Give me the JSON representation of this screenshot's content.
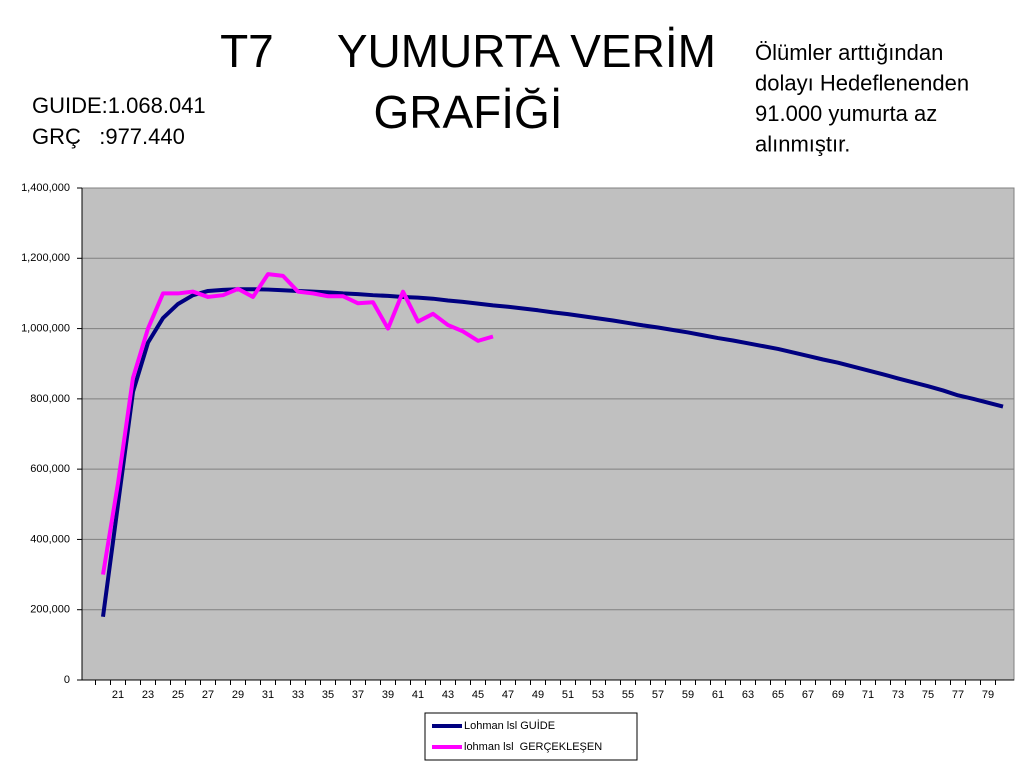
{
  "chart_data": {
    "type": "line",
    "title": [
      "T7     YUMURTA VERİM",
      "GRAFİĞİ"
    ],
    "summary": [
      "GUIDE:1.068.041",
      "GRÇ   :977.440"
    ],
    "annotation": [
      "Ölümler arttığından",
      "dolayı Hedeflenenden",
      "91.000 yumurta az",
      "alınmıştır."
    ],
    "categories": [
      null,
      "21",
      null,
      "23",
      null,
      "25",
      null,
      "27",
      null,
      "29",
      null,
      "31",
      null,
      "33",
      null,
      "35",
      null,
      "37",
      null,
      "39",
      null,
      "41",
      null,
      "43",
      null,
      "45",
      null,
      "47",
      null,
      "49",
      null,
      "51",
      null,
      "53",
      null,
      "55",
      null,
      "57",
      null,
      "59",
      null,
      "61",
      null,
      "63",
      null,
      "65",
      null,
      "67",
      null,
      "69",
      null,
      "71",
      null,
      "73",
      null,
      "75",
      null,
      "77",
      null,
      "79",
      null
    ],
    "series": [
      {
        "name": "Lohman lsl GUİDE",
        "color": "#000080",
        "values": [
          180000,
          500000,
          820000,
          960000,
          1030000,
          1070000,
          1095000,
          1107000,
          1110000,
          1112000,
          1112000,
          1111000,
          1109000,
          1107000,
          1105000,
          1103000,
          1100000,
          1098000,
          1095000,
          1093000,
          1090000,
          1088000,
          1085000,
          1080000,
          1076000,
          1071000,
          1066000,
          1062000,
          1057000,
          1052000,
          1046000,
          1041000,
          1035000,
          1029000,
          1023000,
          1016000,
          1009000,
          1003000,
          996000,
          989000,
          981000,
          973000,
          966000,
          958000,
          950000,
          942000,
          932000,
          922000,
          912000,
          903000,
          892000,
          881000,
          870000,
          858000,
          847000,
          836000,
          824000,
          810000,
          800000,
          789000,
          778000
        ]
      },
      {
        "name": "lohman lsl  GERÇEKLEŞEN",
        "color": "#ff00ff",
        "values": [
          300000,
          560000,
          860000,
          1000000,
          1100000,
          1100000,
          1105000,
          1090000,
          1095000,
          1113000,
          1090000,
          1155000,
          1150000,
          1105000,
          1100000,
          1092000,
          1092000,
          1072000,
          1075000,
          1000000,
          1105000,
          1020000,
          1042000,
          1010000,
          992000,
          965000,
          977440,
          null,
          null,
          null,
          null,
          null,
          null,
          null,
          null,
          null,
          null,
          null,
          null,
          null,
          null,
          null,
          null,
          null,
          null,
          null,
          null,
          null,
          null,
          null,
          null,
          null,
          null,
          null,
          null,
          null,
          null,
          null,
          null,
          null,
          null
        ]
      }
    ],
    "ylim": [
      0,
      1400000
    ],
    "yticks": [
      0,
      {
        "value": 200000,
        "label": "200,000"
      },
      {
        "value": 400000,
        "label": "400,000"
      },
      {
        "value": 600000,
        "label": "600,000"
      },
      {
        "value": 800000,
        "label": "800,000"
      },
      {
        "value": 1000000,
        "label": "1,000,000"
      },
      {
        "value": 1200000,
        "label": "1,200,000"
      },
      {
        "value": 1400000,
        "label": "1,400,000"
      }
    ],
    "grid": true,
    "plot_background": "#c0c0c0",
    "legend": "bottom"
  }
}
